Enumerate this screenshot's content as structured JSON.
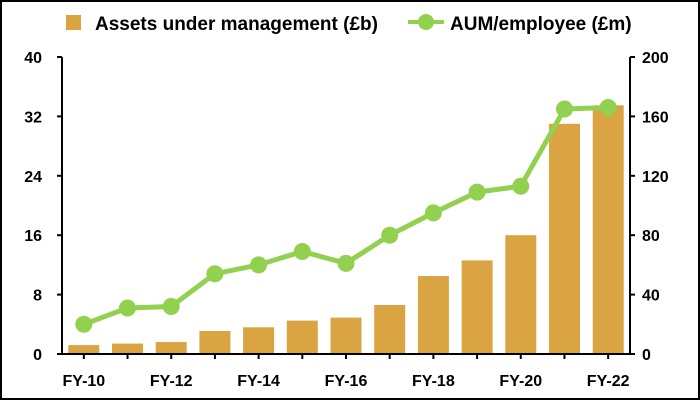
{
  "chart_data": {
    "type": "bar+line",
    "title": "",
    "categories": [
      "FY-10",
      "FY-11",
      "FY-12",
      "FY-13",
      "FY-14",
      "FY-15",
      "FY-16",
      "FY-17",
      "FY-18",
      "FY-19",
      "FY-20",
      "FY-21",
      "FY-22"
    ],
    "x_tick_labels": [
      "FY-10",
      "FY-12",
      "FY-14",
      "FY-16",
      "FY-18",
      "FY-20",
      "FY-22"
    ],
    "series": [
      {
        "name": "Assets under management (£b)",
        "kind": "bar",
        "axis": "left",
        "color": "#D9A441",
        "values": [
          1.2,
          1.4,
          1.6,
          3.1,
          3.6,
          4.5,
          4.9,
          6.6,
          10.5,
          12.6,
          16.0,
          31.0,
          33.5
        ]
      },
      {
        "name": "AUM/employee (£m)",
        "kind": "line",
        "axis": "right",
        "color": "#92D050",
        "values": [
          20,
          31,
          32,
          54,
          60,
          69,
          61,
          80,
          95,
          109,
          113,
          165,
          166
        ]
      }
    ],
    "y_left": {
      "range": [
        0,
        40
      ],
      "ticks": [
        "0",
        "8",
        "16",
        "24",
        "32",
        "40"
      ]
    },
    "y_right": {
      "range": [
        0,
        200
      ],
      "ticks": [
        "0",
        "40",
        "80",
        "120",
        "160",
        "200"
      ]
    },
    "xlabel": "",
    "ylabel": "",
    "grid": false,
    "legend_position": "top"
  }
}
